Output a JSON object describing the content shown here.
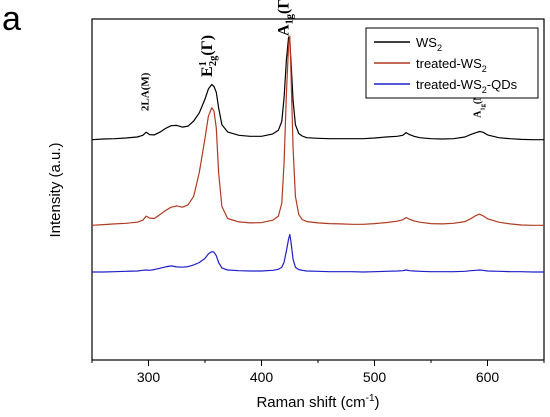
{
  "panel_label": "a",
  "chart_data": {
    "type": "line",
    "title": "",
    "xlabel": "Raman shift (cm",
    "xlabel_sup": "-1",
    "xlabel_end": ")",
    "ylabel": "Intensity (a.u.)",
    "xlim": [
      250,
      650
    ],
    "ylim": [
      0,
      100
    ],
    "x_ticks": [
      300,
      400,
      500,
      600
    ],
    "grid": false,
    "legend_position": "top-right",
    "annotations": [
      {
        "id": "2la",
        "text": "2LA(M)",
        "x": 300,
        "y": 73
      },
      {
        "id": "e2g",
        "text": "E",
        "sup": "1",
        "sub": "2g",
        "tail": "(Γ)",
        "x": 356,
        "y": 83
      },
      {
        "id": "a1g",
        "text": "A",
        "sub": "1g",
        "tail": "(Γ)",
        "x": 424,
        "y": 95
      },
      {
        "id": "combo",
        "text": "A",
        "sub": "1g",
        "tail": "(M)+LA(M)",
        "x": 594,
        "y": 71
      }
    ],
    "series": [
      {
        "name": "WS",
        "name_sub": "2",
        "color": "#000000",
        "x": [
          250,
          260,
          270,
          280,
          290,
          295,
          298,
          301,
          305,
          310,
          315,
          320,
          325,
          330,
          335,
          340,
          345,
          350,
          353,
          356,
          358,
          360,
          362,
          365,
          370,
          380,
          390,
          400,
          410,
          415,
          418,
          420,
          422,
          424,
          425,
          426,
          428,
          430,
          433,
          436,
          440,
          450,
          460,
          470,
          480,
          490,
          500,
          510,
          520,
          525,
          528,
          531,
          535,
          540,
          550,
          560,
          570,
          580,
          585,
          590,
          593,
          596,
          600,
          610,
          620,
          630,
          640,
          650
        ],
        "y": [
          64.6,
          64.8,
          64.9,
          65.1,
          65.4,
          65.9,
          66.8,
          66.1,
          66.0,
          66.8,
          67.9,
          68.7,
          68.8,
          68.3,
          68.6,
          70.1,
          72.5,
          76.5,
          79.5,
          80.8,
          80.2,
          78.5,
          74.0,
          69.0,
          66.9,
          65.9,
          65.6,
          65.6,
          66.3,
          67.4,
          70.0,
          77.0,
          88.0,
          94.7,
          93.5,
          88.0,
          76.0,
          69.0,
          66.4,
          65.7,
          65.2,
          65.0,
          64.9,
          64.9,
          64.9,
          64.9,
          65.1,
          65.4,
          65.6,
          65.9,
          66.7,
          66.1,
          65.6,
          65.2,
          64.9,
          64.8,
          64.9,
          65.4,
          66.1,
          66.7,
          67.0,
          66.8,
          66.0,
          65.2,
          64.9,
          64.7,
          64.6,
          64.6
        ]
      },
      {
        "name": "treated-WS",
        "name_sub": "2",
        "color": "#b03a20",
        "x": [
          250,
          260,
          270,
          280,
          290,
          295,
          298,
          301,
          305,
          310,
          315,
          320,
          325,
          330,
          335,
          340,
          345,
          350,
          353,
          356,
          358,
          360,
          362,
          365,
          370,
          380,
          390,
          400,
          410,
          415,
          418,
          420,
          422,
          424,
          425,
          426,
          428,
          430,
          433,
          436,
          440,
          450,
          460,
          470,
          480,
          490,
          500,
          510,
          520,
          525,
          528,
          531,
          535,
          540,
          550,
          560,
          570,
          580,
          585,
          590,
          593,
          596,
          600,
          610,
          620,
          630,
          640,
          650
        ],
        "y": [
          39.5,
          39.7,
          39.9,
          40.1,
          40.4,
          41.0,
          42.2,
          41.6,
          41.5,
          42.6,
          43.8,
          44.8,
          45.2,
          44.8,
          45.5,
          48.0,
          55.0,
          65.0,
          71.5,
          74.0,
          73.0,
          68.0,
          55.0,
          45.0,
          41.5,
          40.5,
          40.2,
          40.3,
          41.0,
          42.2,
          46.0,
          58.0,
          78.0,
          92.5,
          95.0,
          85.0,
          62.0,
          48.0,
          42.6,
          41.2,
          40.6,
          40.2,
          40.0,
          39.9,
          39.8,
          39.8,
          40.0,
          40.3,
          40.7,
          41.1,
          41.8,
          41.3,
          40.8,
          40.4,
          40.0,
          39.9,
          40.1,
          40.6,
          41.4,
          42.4,
          42.8,
          42.3,
          41.4,
          40.4,
          39.9,
          39.6,
          39.5,
          39.5
        ]
      },
      {
        "name": "treated-WS",
        "name_sub": "2",
        "name_tail": "-QDs",
        "color": "#1f1fc8",
        "x": [
          250,
          260,
          270,
          280,
          290,
          295,
          298,
          301,
          305,
          310,
          315,
          320,
          325,
          330,
          335,
          340,
          345,
          350,
          353,
          356,
          358,
          360,
          362,
          365,
          370,
          380,
          390,
          400,
          410,
          415,
          418,
          420,
          422,
          424,
          425,
          426,
          428,
          430,
          433,
          436,
          440,
          450,
          460,
          470,
          480,
          490,
          500,
          510,
          520,
          525,
          528,
          531,
          535,
          540,
          550,
          560,
          570,
          580,
          585,
          590,
          593,
          596,
          600,
          610,
          620,
          630,
          640,
          650
        ],
        "y": [
          25.8,
          25.8,
          25.9,
          26.0,
          26.1,
          26.3,
          26.4,
          26.3,
          26.5,
          26.9,
          27.3,
          27.6,
          27.3,
          27.2,
          27.4,
          27.9,
          28.6,
          29.8,
          31.1,
          31.8,
          31.6,
          30.6,
          28.6,
          27.0,
          26.4,
          26.2,
          26.1,
          26.1,
          26.3,
          26.6,
          27.2,
          28.7,
          32.0,
          35.5,
          36.8,
          34.8,
          29.5,
          27.2,
          26.5,
          26.3,
          26.1,
          26.0,
          25.9,
          25.9,
          25.9,
          25.8,
          25.9,
          26.0,
          26.1,
          26.2,
          26.4,
          26.2,
          26.1,
          26.0,
          25.9,
          25.9,
          25.9,
          26.0,
          26.2,
          26.3,
          26.4,
          26.3,
          26.1,
          26.0,
          25.9,
          25.9,
          25.8,
          25.8
        ]
      }
    ]
  }
}
